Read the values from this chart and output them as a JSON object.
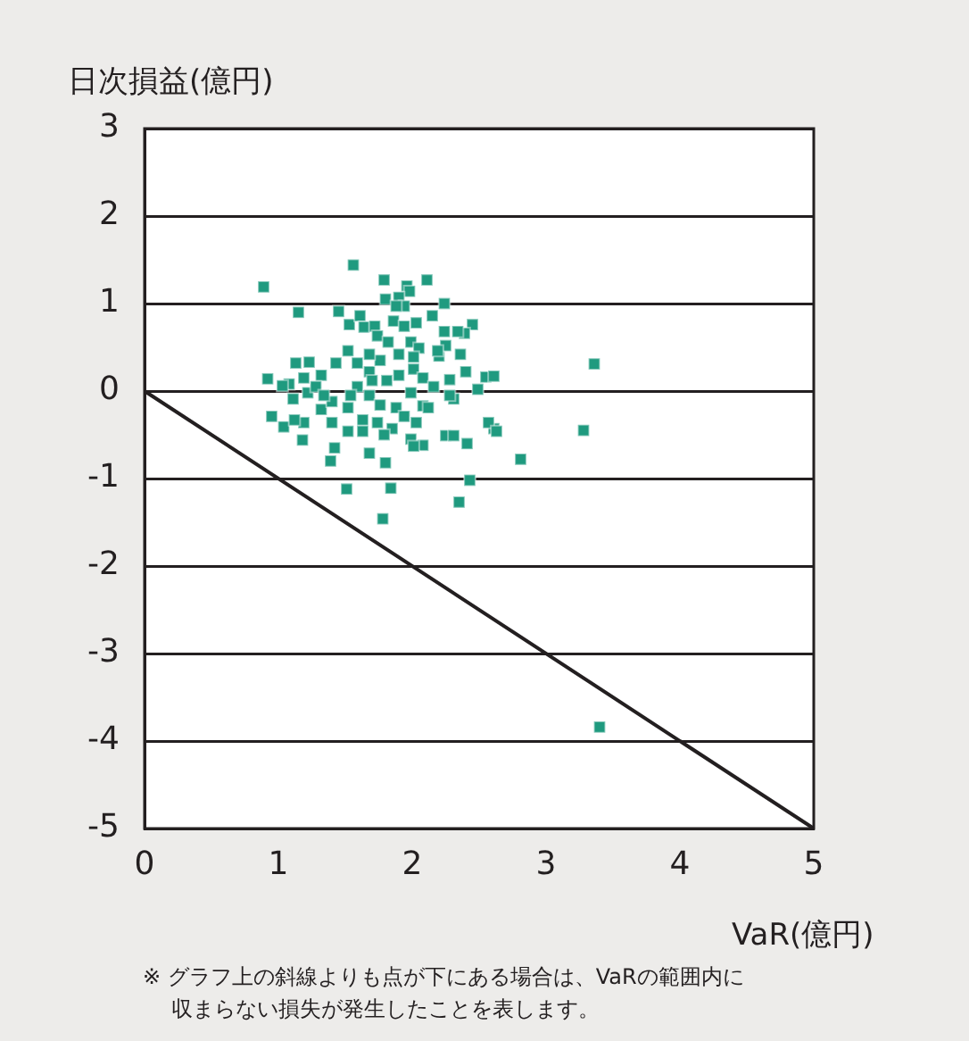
{
  "chart_data": {
    "type": "scatter",
    "ylabel": "日次損益(億円)",
    "xlabel": "VaR(億円)",
    "annotations": [
      "※ グラフ上の斜線よりも点が下にある場合は、VaRの範囲内に収まらない損失が発生したことを表します。"
    ],
    "xlim": [
      0,
      5
    ],
    "xticks": [
      0,
      1,
      2,
      3,
      4,
      5
    ],
    "ylim": [
      -5,
      3
    ],
    "yticks": [
      -5,
      -4,
      -3,
      -2,
      -1,
      0,
      1,
      2,
      3
    ],
    "grid": "y",
    "legend": false,
    "marker": "square",
    "series": [
      {
        "color": "#1f9a7f",
        "x": [
          1.56,
          0.89,
          1.79,
          1.96,
          2.11,
          1.98,
          1.15,
          1.45,
          1.8,
          1.9,
          2.24,
          2.15,
          2.45,
          3.36,
          0.92,
          0.95,
          1.04,
          1.18,
          1.39,
          1.42,
          1.51,
          1.78,
          1.84,
          1.8,
          1.68,
          2.43,
          2.35,
          2.81,
          3.28,
          2.61,
          2.41,
          2.25,
          2.31,
          2.55,
          2.61,
          2.49,
          2.4,
          2.28,
          2.31,
          2.36,
          2.39,
          2.24,
          2.34,
          2.2,
          2.25,
          3.4,
          1.13,
          1.23,
          1.08,
          1.11,
          1.22,
          1.32,
          1.32,
          1.4,
          1.4,
          1.52,
          1.52,
          1.52,
          1.53,
          1.61,
          1.64,
          1.72,
          1.74,
          1.82,
          1.86,
          1.94,
          2.03,
          1.99,
          2.05,
          1.59,
          1.68,
          1.76,
          1.81,
          1.9,
          2.01,
          2.08,
          2.16,
          1.59,
          1.68,
          1.76,
          1.88,
          1.99,
          2.08,
          2.12,
          1.63,
          1.74,
          1.85,
          1.94,
          2.03,
          1.63,
          1.79,
          1.99,
          2.08,
          2.01,
          1.43,
          1.28,
          1.19,
          1.34,
          1.03,
          1.19,
          1.12,
          1.7,
          1.54,
          2.19,
          2.28,
          2.57,
          2.63,
          1.9,
          1.68,
          2.01,
          1.94,
          1.88
        ],
        "values": [
          1.44,
          1.19,
          1.27,
          1.2,
          1.27,
          1.14,
          0.9,
          0.91,
          1.05,
          1.07,
          1.0,
          0.86,
          0.76,
          0.31,
          0.14,
          -0.29,
          -0.41,
          -0.56,
          -0.8,
          -0.65,
          -1.12,
          -1.46,
          -1.11,
          -0.82,
          -0.71,
          -1.02,
          -1.27,
          -0.78,
          -0.45,
          -0.43,
          -0.6,
          -0.51,
          -0.51,
          0.16,
          0.17,
          0.02,
          0.22,
          0.13,
          -0.09,
          0.42,
          0.66,
          0.68,
          0.68,
          0.4,
          0.52,
          -3.84,
          0.32,
          0.33,
          0.08,
          -0.09,
          -0.02,
          0.18,
          -0.21,
          -0.12,
          -0.36,
          0.46,
          -0.19,
          -0.46,
          0.76,
          0.86,
          0.73,
          0.74,
          0.63,
          0.56,
          0.8,
          0.74,
          0.78,
          0.56,
          0.49,
          0.32,
          0.22,
          0.35,
          0.12,
          0.18,
          0.25,
          0.15,
          0.05,
          0.05,
          -0.05,
          -0.16,
          -0.19,
          -0.02,
          -0.17,
          -0.19,
          -0.33,
          -0.36,
          -0.43,
          -0.29,
          -0.36,
          -0.46,
          -0.5,
          -0.55,
          -0.62,
          -0.63,
          0.32,
          0.05,
          0.15,
          -0.05,
          0.06,
          -0.36,
          -0.33,
          0.12,
          -0.05,
          0.46,
          -0.05,
          -0.36,
          -0.46,
          0.42,
          0.42,
          0.39,
          0.97,
          0.97
        ]
      },
      {
        "type": "line",
        "color": "#231f20",
        "x": [
          0,
          5
        ],
        "values": [
          0,
          -5
        ],
        "marker": "none",
        "line_style": "solid"
      }
    ]
  }
}
